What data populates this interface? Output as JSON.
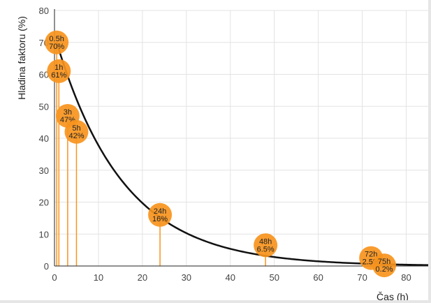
{
  "chart_data": {
    "type": "scatter",
    "title": "",
    "xlabel": "Čas (h)",
    "ylabel": "Hladina faktoru (%)",
    "xlim": [
      0,
      85
    ],
    "ylim": [
      0,
      80
    ],
    "xticks": [
      "0",
      "10",
      "20",
      "30",
      "40",
      "50",
      "60",
      "70",
      "80"
    ],
    "yticks": [
      "0",
      "10",
      "20",
      "30",
      "40",
      "50",
      "60",
      "70",
      "80"
    ],
    "grid": true,
    "curve": {
      "form": "exponential decay",
      "y0": 70,
      "decay_rate": 0.065
    },
    "points": [
      {
        "x": 0.5,
        "y": 70,
        "time_label": "0.5h",
        "value_label": "70%"
      },
      {
        "x": 1,
        "y": 61,
        "time_label": "1h",
        "value_label": "61%"
      },
      {
        "x": 3,
        "y": 47,
        "time_label": "3h",
        "value_label": "47%"
      },
      {
        "x": 5,
        "y": 42,
        "time_label": "5h",
        "value_label": "42%"
      },
      {
        "x": 24,
        "y": 16,
        "time_label": "24h",
        "value_label": "16%"
      },
      {
        "x": 48,
        "y": 6.5,
        "time_label": "48h",
        "value_label": "6.5%"
      },
      {
        "x": 72,
        "y": 2.5,
        "time_label": "72h",
        "value_label": "2.5%"
      },
      {
        "x": 75,
        "y": 0.2,
        "time_label": "75h",
        "value_label": "0.2%"
      }
    ],
    "colors": {
      "bubble": "#f7941d",
      "stem": "#f7941d",
      "curve": "#111111",
      "grid": "#e3e3e3",
      "axis": "#222222"
    }
  }
}
